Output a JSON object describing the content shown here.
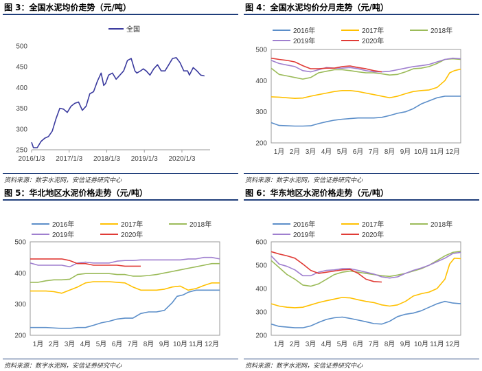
{
  "chart_data": [
    {
      "id": "fig3",
      "type": "line",
      "title": "图 3：全国水泥均价走势（元/吨）",
      "source": "资料来源：数字水泥网，安信证券研究中心",
      "legend_placement": "top-center",
      "ylim": [
        250,
        500
      ],
      "yticks": [
        250,
        300,
        350,
        400,
        450,
        500
      ],
      "x_range": [
        0,
        4.75
      ],
      "xticks": [
        {
          "label": "2016/1/3",
          "x": 0
        },
        {
          "label": "2017/1/3",
          "x": 1
        },
        {
          "label": "2018/1/3",
          "x": 2
        },
        {
          "label": "2019/1/3",
          "x": 3
        },
        {
          "label": "2020/1/3",
          "x": 4
        }
      ],
      "series": [
        {
          "name": "全国",
          "color": "#3a3a9e",
          "x": [
            0,
            0.05,
            0.15,
            0.25,
            0.35,
            0.45,
            0.55,
            0.65,
            0.75,
            0.85,
            0.95,
            1.05,
            1.15,
            1.25,
            1.35,
            1.45,
            1.55,
            1.65,
            1.75,
            1.85,
            1.92,
            1.97,
            2.05,
            2.15,
            2.25,
            2.35,
            2.45,
            2.55,
            2.65,
            2.75,
            2.8,
            2.9,
            2.97,
            3.05,
            3.15,
            3.25,
            3.35,
            3.45,
            3.55,
            3.65,
            3.75,
            3.85,
            3.95,
            4.05,
            4.15,
            4.2,
            4.3,
            4.4,
            4.5,
            4.6
          ],
          "values": [
            268,
            255,
            255,
            270,
            278,
            282,
            295,
            325,
            350,
            348,
            340,
            355,
            362,
            365,
            345,
            355,
            385,
            390,
            415,
            435,
            405,
            410,
            430,
            435,
            420,
            430,
            440,
            465,
            470,
            440,
            435,
            440,
            445,
            440,
            430,
            445,
            455,
            440,
            440,
            455,
            470,
            472,
            460,
            440,
            440,
            430,
            448,
            440,
            430,
            428
          ]
        }
      ]
    },
    {
      "id": "fig4",
      "type": "line",
      "title": "图 4：全国水泥均价分月走势（元/吨）",
      "source": "资料来源：数字水泥网，安信证券研究中心",
      "legend_placement": "top",
      "ylim": [
        200,
        500
      ],
      "yticks": [
        200,
        300,
        400,
        500
      ],
      "x_range": [
        1,
        13
      ],
      "categories": [
        "1月",
        "2月",
        "3月",
        "4月",
        "5月",
        "6月",
        "7月",
        "8月",
        "9月",
        "10月",
        "11月",
        "12月"
      ],
      "series": [
        {
          "name": "2016年",
          "color": "#5b8ec9",
          "x": [
            1,
            1.5,
            2,
            2.5,
            3,
            3.5,
            4,
            4.5,
            5,
            5.5,
            6,
            6.5,
            7,
            7.5,
            8,
            8.5,
            9,
            9.5,
            10,
            10.5,
            11,
            11.5,
            12,
            12.5,
            13
          ],
          "values": [
            265,
            256,
            255,
            254,
            254,
            255,
            262,
            268,
            273,
            276,
            278,
            280,
            280,
            280,
            282,
            288,
            295,
            300,
            310,
            325,
            335,
            345,
            350,
            350,
            350
          ]
        },
        {
          "name": "2017年",
          "color": "#ffc000",
          "x": [
            1,
            1.5,
            2,
            2.5,
            3,
            3.5,
            4,
            4.5,
            5,
            5.5,
            6,
            6.5,
            7,
            7.5,
            8,
            8.5,
            9,
            9.5,
            10,
            10.5,
            11,
            11.5,
            12,
            12.3,
            12.6,
            13
          ],
          "values": [
            348,
            347,
            345,
            343,
            344,
            350,
            355,
            360,
            365,
            368,
            368,
            365,
            360,
            355,
            350,
            345,
            350,
            358,
            365,
            368,
            370,
            378,
            400,
            425,
            432,
            437
          ]
        },
        {
          "name": "2018年",
          "color": "#9bbb59",
          "x": [
            1,
            1.5,
            2,
            2.5,
            3,
            3.5,
            4,
            4.5,
            5,
            5.5,
            6,
            6.5,
            7,
            7.5,
            8,
            8.5,
            9,
            9.5,
            10,
            10.5,
            11,
            11.5,
            12,
            12.5,
            13
          ],
          "values": [
            440,
            420,
            415,
            410,
            405,
            410,
            425,
            430,
            435,
            435,
            432,
            428,
            425,
            425,
            422,
            418,
            420,
            428,
            438,
            440,
            445,
            455,
            468,
            470,
            468
          ]
        },
        {
          "name": "2019年",
          "color": "#9f7fcf",
          "x": [
            1,
            1.5,
            2,
            2.5,
            3,
            3.5,
            4,
            4.5,
            5,
            5.5,
            6,
            6.5,
            7,
            7.5,
            8,
            8.5,
            9,
            9.5,
            10,
            10.5,
            11,
            11.5,
            12,
            12.5,
            13
          ],
          "values": [
            465,
            455,
            450,
            445,
            432,
            428,
            435,
            442,
            440,
            440,
            442,
            438,
            432,
            428,
            428,
            430,
            435,
            440,
            445,
            448,
            452,
            460,
            468,
            472,
            470
          ]
        },
        {
          "name": "2020年",
          "color": "#e03b36",
          "x": [
            1,
            1.5,
            2,
            2.5,
            3,
            3.5,
            4,
            4.5,
            5,
            5.5,
            6,
            6.5,
            7,
            7.5,
            8
          ],
          "values": [
            472,
            468,
            465,
            460,
            448,
            438,
            438,
            440,
            440,
            445,
            447,
            442,
            438,
            432,
            428
          ]
        }
      ]
    },
    {
      "id": "fig5",
      "type": "line",
      "title": "图 5：华北地区水泥价格走势（元/吨）",
      "source": "资料来源：数字水泥网，安信证券研究中心",
      "legend_placement": "top",
      "ylim": [
        200,
        500
      ],
      "yticks": [
        200,
        300,
        400,
        500
      ],
      "x_range": [
        1,
        13
      ],
      "categories": [
        "1月",
        "2月",
        "3月",
        "4月",
        "5月",
        "6月",
        "7月",
        "8月",
        "9月",
        "10月",
        "11月",
        "12月"
      ],
      "series": [
        {
          "name": "2016年",
          "color": "#5b8ec9",
          "x": [
            1,
            2,
            3,
            3.5,
            4,
            4.5,
            5,
            5.5,
            6,
            6.5,
            7,
            7.5,
            8,
            8.5,
            9,
            9.5,
            10,
            10.3,
            10.7,
            11,
            11.5,
            12,
            12.5,
            13
          ],
          "values": [
            225,
            225,
            222,
            222,
            225,
            225,
            232,
            240,
            245,
            252,
            255,
            255,
            270,
            275,
            275,
            280,
            305,
            325,
            330,
            338,
            345,
            345,
            345,
            345
          ]
        },
        {
          "name": "2017年",
          "color": "#ffc000",
          "x": [
            1,
            2,
            2.5,
            3,
            3.5,
            4,
            4.5,
            5,
            5.5,
            6,
            6.5,
            7,
            7.5,
            8,
            8.5,
            9,
            9.5,
            10,
            10.5,
            11,
            11.5,
            12,
            12.5,
            13
          ],
          "values": [
            342,
            342,
            340,
            335,
            345,
            355,
            368,
            372,
            372,
            372,
            370,
            368,
            355,
            345,
            345,
            345,
            348,
            355,
            358,
            345,
            350,
            360,
            368,
            368
          ]
        },
        {
          "name": "2018年",
          "color": "#9bbb59",
          "x": [
            1,
            1.5,
            2,
            2.5,
            3,
            3.5,
            4,
            4.5,
            5,
            5.5,
            6,
            6.5,
            7,
            7.5,
            8,
            8.5,
            9,
            9.5,
            10,
            10.5,
            11,
            11.5,
            12,
            12.5,
            13
          ],
          "values": [
            370,
            370,
            375,
            378,
            378,
            380,
            395,
            398,
            398,
            398,
            398,
            395,
            395,
            390,
            390,
            392,
            395,
            400,
            405,
            410,
            415,
            420,
            425,
            430,
            430
          ]
        },
        {
          "name": "2019年",
          "color": "#9f7fcf",
          "x": [
            1,
            1.5,
            2,
            2.5,
            3,
            3.5,
            4,
            4.5,
            5,
            5.5,
            6,
            6.5,
            7,
            7.5,
            8,
            8.5,
            9,
            9.5,
            10,
            10.5,
            11,
            11.5,
            12,
            12.5,
            13
          ],
          "values": [
            432,
            425,
            425,
            425,
            425,
            420,
            432,
            435,
            432,
            432,
            432,
            438,
            440,
            440,
            442,
            442,
            442,
            442,
            442,
            442,
            445,
            445,
            450,
            450,
            445
          ]
        },
        {
          "name": "2020年",
          "color": "#e03b36",
          "x": [
            1,
            2,
            3,
            3.5,
            4,
            4.5,
            5,
            5.5,
            6,
            6.5,
            7,
            7.5,
            8
          ],
          "values": [
            445,
            445,
            445,
            440,
            430,
            430,
            425,
            425,
            425,
            425,
            422,
            422,
            422
          ]
        }
      ]
    },
    {
      "id": "fig6",
      "type": "line",
      "title": "图 6：华东地区水泥价格走势（元/吨）",
      "source": "资料来源：数字水泥网，安信证券研究中心",
      "legend_placement": "top",
      "ylim": [
        200,
        600
      ],
      "yticks": [
        200,
        300,
        400,
        500,
        600
      ],
      "x_range": [
        1,
        13
      ],
      "categories": [
        "1月",
        "2月",
        "3月",
        "4月",
        "5月",
        "6月",
        "7月",
        "8月",
        "9月",
        "10月",
        "11月",
        "12月"
      ],
      "series": [
        {
          "name": "2016年",
          "color": "#5b8ec9",
          "x": [
            1,
            1.5,
            2,
            2.5,
            3,
            3.5,
            4,
            4.5,
            5,
            5.5,
            6,
            6.5,
            7,
            7.5,
            8,
            8.5,
            9,
            9.5,
            10,
            10.5,
            11,
            11.5,
            12,
            12.5,
            13
          ],
          "values": [
            248,
            238,
            235,
            232,
            232,
            240,
            255,
            268,
            275,
            278,
            272,
            265,
            258,
            250,
            248,
            260,
            280,
            290,
            295,
            305,
            320,
            335,
            345,
            338,
            335
          ]
        },
        {
          "name": "2017年",
          "color": "#ffc000",
          "x": [
            1,
            1.5,
            2,
            2.5,
            3,
            3.5,
            4,
            4.5,
            5,
            5.5,
            6,
            6.5,
            7,
            7.5,
            8,
            8.5,
            9,
            9.5,
            10,
            10.5,
            11,
            11.5,
            12,
            12.3,
            12.6,
            13
          ],
          "values": [
            335,
            325,
            320,
            318,
            320,
            330,
            340,
            348,
            355,
            362,
            360,
            352,
            345,
            340,
            330,
            325,
            330,
            345,
            368,
            378,
            385,
            400,
            440,
            505,
            530,
            528
          ]
        },
        {
          "name": "2018年",
          "color": "#9bbb59",
          "x": [
            1,
            1.5,
            2,
            2.5,
            3,
            3.5,
            4,
            4.5,
            5,
            5.5,
            6,
            6.5,
            7,
            7.5,
            8,
            8.5,
            9,
            9.5,
            10,
            10.5,
            11,
            11.5,
            12,
            12.5,
            13
          ],
          "values": [
            520,
            490,
            460,
            440,
            415,
            410,
            420,
            440,
            460,
            470,
            475,
            470,
            465,
            460,
            455,
            452,
            458,
            465,
            475,
            485,
            500,
            520,
            540,
            555,
            560
          ]
        },
        {
          "name": "2019年",
          "color": "#9f7fcf",
          "x": [
            1,
            1.5,
            2,
            2.5,
            3,
            3.5,
            4,
            4.5,
            5,
            5.5,
            6,
            6.5,
            7,
            7.5,
            8,
            8.5,
            9,
            9.5,
            10,
            10.5,
            11,
            11.5,
            12,
            12.5,
            13
          ],
          "values": [
            540,
            505,
            495,
            480,
            455,
            455,
            470,
            478,
            480,
            485,
            485,
            478,
            470,
            462,
            450,
            445,
            450,
            465,
            478,
            488,
            500,
            515,
            530,
            550,
            555
          ]
        },
        {
          "name": "2020年",
          "color": "#e03b36",
          "x": [
            1,
            1.5,
            2,
            2.5,
            3,
            3.5,
            4,
            4.5,
            5,
            5.5,
            6,
            6.5,
            7,
            7.5,
            8
          ],
          "values": [
            558,
            548,
            540,
            530,
            505,
            478,
            465,
            470,
            475,
            480,
            482,
            465,
            440,
            430,
            428
          ]
        }
      ]
    }
  ]
}
